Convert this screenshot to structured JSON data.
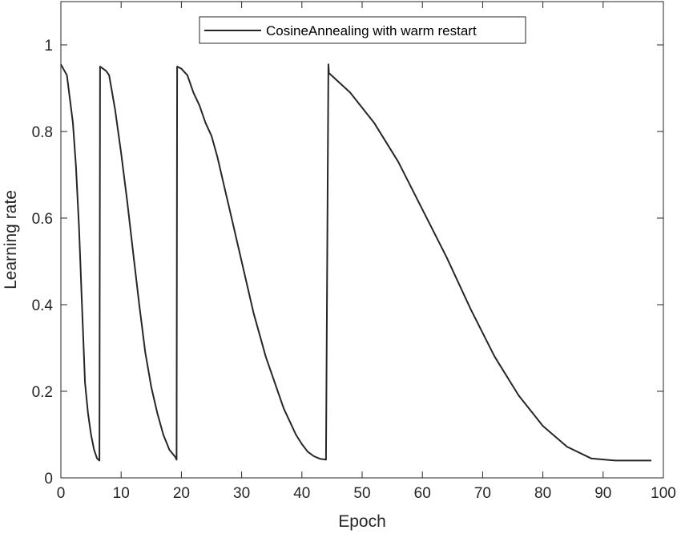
{
  "chart_data": {
    "type": "line",
    "title": "",
    "xlabel": "Epoch",
    "ylabel": "Learning rate",
    "xlim": [
      0,
      100
    ],
    "ylim": [
      0,
      1.1
    ],
    "xticks": [
      0,
      10,
      20,
      30,
      40,
      50,
      60,
      70,
      80,
      90,
      100
    ],
    "yticks": [
      0,
      0.2,
      0.4,
      0.6,
      0.8,
      1
    ],
    "grid": false,
    "legend_position": "top-center",
    "series": [
      {
        "name": "CosineAnnealing with warm restart",
        "color": "#262626",
        "x": [
          0,
          1,
          2,
          2.5,
          3,
          3.5,
          4,
          4.5,
          5,
          5.5,
          6,
          6.4,
          6.5,
          7.5,
          8,
          9,
          10,
          11,
          12,
          13,
          14,
          15,
          16,
          17,
          18,
          19,
          19.2,
          19.3,
          20,
          21,
          22,
          23,
          24,
          25,
          26,
          27,
          28,
          29,
          30,
          31,
          32,
          33,
          34,
          35,
          36,
          37,
          38,
          39,
          40,
          41,
          42,
          43,
          44,
          44.4,
          44.5,
          48,
          52,
          56,
          60,
          64,
          68,
          72,
          76,
          80,
          84,
          88,
          92,
          95,
          98
        ],
        "values": [
          0.955,
          0.93,
          0.82,
          0.72,
          0.58,
          0.4,
          0.22,
          0.15,
          0.1,
          0.065,
          0.045,
          0.04,
          0.95,
          0.94,
          0.93,
          0.85,
          0.75,
          0.64,
          0.52,
          0.4,
          0.29,
          0.21,
          0.15,
          0.1,
          0.065,
          0.048,
          0.042,
          0.95,
          0.945,
          0.93,
          0.89,
          0.86,
          0.82,
          0.79,
          0.74,
          0.68,
          0.62,
          0.56,
          0.5,
          0.44,
          0.38,
          0.33,
          0.28,
          0.24,
          0.2,
          0.16,
          0.13,
          0.1,
          0.078,
          0.06,
          0.05,
          0.044,
          0.042,
          0.955,
          0.935,
          0.89,
          0.82,
          0.73,
          0.62,
          0.51,
          0.39,
          0.28,
          0.19,
          0.12,
          0.072,
          0.045,
          0.04,
          0.04,
          0.04
        ]
      }
    ]
  }
}
